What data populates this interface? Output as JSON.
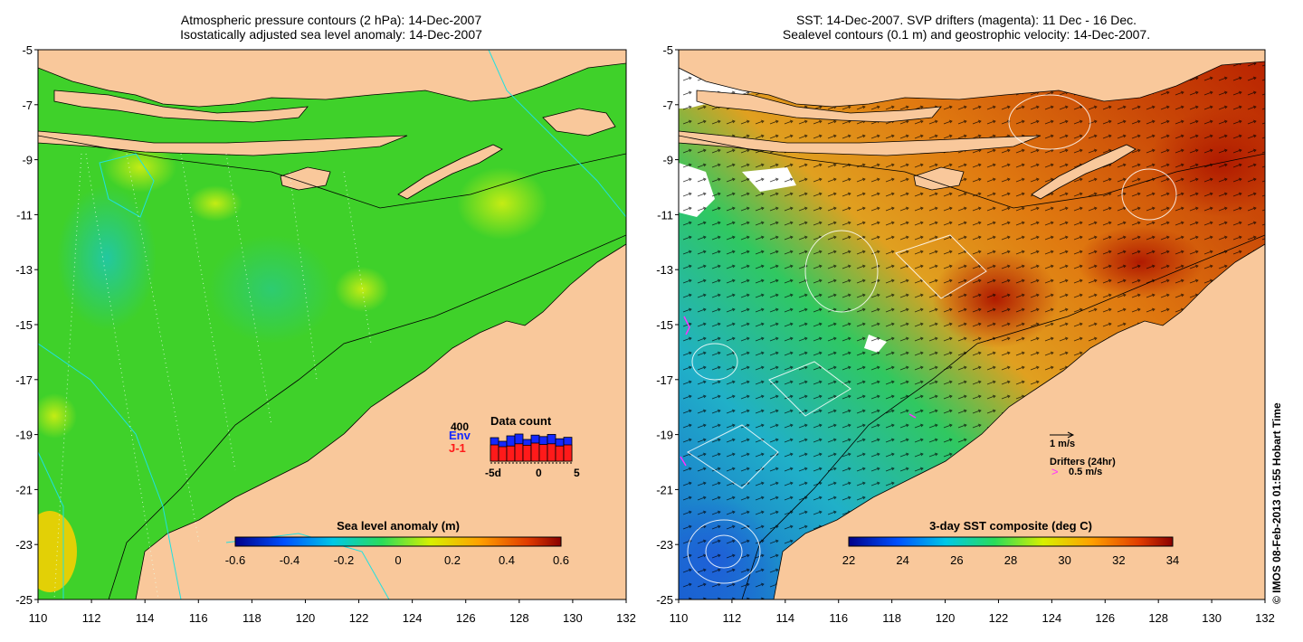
{
  "left_panel": {
    "title_line1": "Atmospheric pressure contours (2 hPa): 14-Dec-2007",
    "title_line2": "Isostatically adjusted sea level anomaly: 14-Dec-2007",
    "colorbar": {
      "label": "Sea level anomaly (m)",
      "ticks": [
        "-0.6",
        "-0.4",
        "-0.2",
        "0",
        "0.2",
        "0.4",
        "0.6"
      ]
    },
    "data_count": {
      "title": "Data count",
      "scale": "400",
      "env_label": "Env",
      "j1_label": "J-1",
      "x_ticks": [
        "-5d",
        "0",
        "5"
      ],
      "env_color": "#1428ff",
      "j1_color": "#ff1a1a"
    }
  },
  "right_panel": {
    "title_line1": "SST: 14-Dec-2007. SVP drifters (magenta): 11 Dec - 16 Dec.",
    "title_line2": "Sealevel contours (0.1 m) and geostrophic velocity: 14-Dec-2007.",
    "colorbar": {
      "label": "3-day SST composite (deg C)",
      "ticks": [
        "22",
        "24",
        "26",
        "28",
        "30",
        "32",
        "34"
      ]
    },
    "legend": {
      "velocity_label": "1 m/s",
      "drifters_label": "Drifters (24hr)",
      "drifter_speed_label": "0.5 m/s",
      "drifter_symbol": ">"
    }
  },
  "axes": {
    "lat_ticks": [
      "-5",
      "-7",
      "-9",
      "-11",
      "-13",
      "-15",
      "-17",
      "-19",
      "-21",
      "-23",
      "-25"
    ],
    "lon_ticks": [
      "110",
      "112",
      "114",
      "116",
      "118",
      "120",
      "122",
      "124",
      "126",
      "128",
      "130",
      "132"
    ]
  },
  "credit": "© IMOS 08-Feb-2013 01:55 Hobart Time",
  "colors": {
    "land": "#f9c89b",
    "ocean_green": "#3fd12a",
    "sst_orange": "#e07a10",
    "sst_red": "#b82000",
    "sst_blue": "#2a7ed8",
    "drifter": "#ff30ff"
  }
}
